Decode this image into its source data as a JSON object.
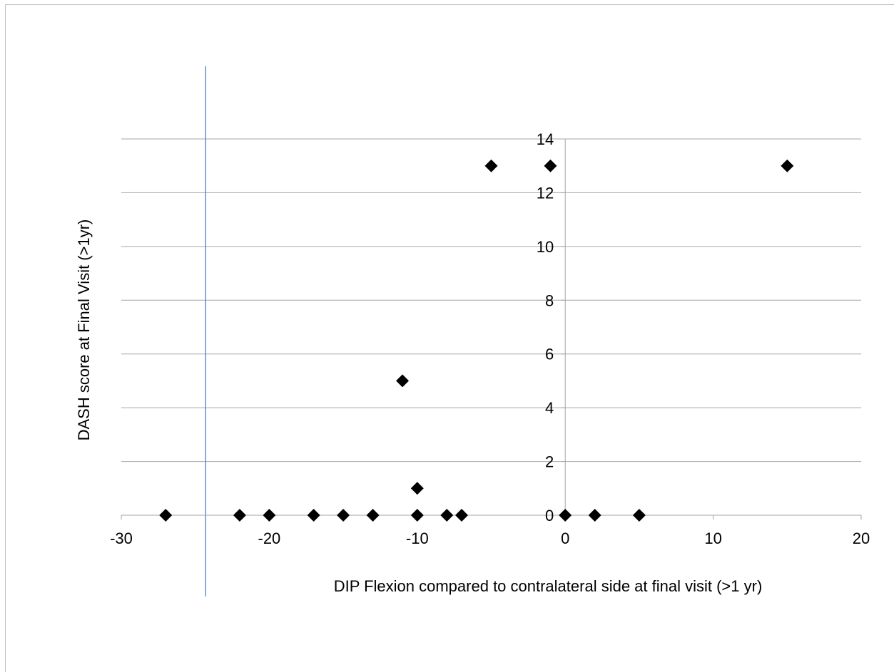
{
  "chart_data": {
    "type": "scatter",
    "xlabel": "DIP Flexion compared to contralateral side at final visit (>1 yr)",
    "ylabel": "DASH score at Final Visit (>1yr)",
    "xlim": [
      -30,
      20
    ],
    "ylim": [
      0,
      14
    ],
    "x_ticks": [
      -30,
      -20,
      -10,
      0,
      10,
      20
    ],
    "y_ticks": [
      0,
      2,
      4,
      6,
      8,
      10,
      12,
      14
    ],
    "grid": "horizontal",
    "legend": "none",
    "vertical_reference_line_x": -24.3,
    "colors": {
      "marker": "#000000",
      "gridline": "#a6a6a6",
      "reference_line": "#4472c4"
    },
    "marker": "diamond",
    "points": [
      {
        "x": -27,
        "y": 0
      },
      {
        "x": -22,
        "y": 0
      },
      {
        "x": -20,
        "y": 0
      },
      {
        "x": -17,
        "y": 0
      },
      {
        "x": -15,
        "y": 0
      },
      {
        "x": -13,
        "y": 0
      },
      {
        "x": -10,
        "y": 0
      },
      {
        "x": -8,
        "y": 0
      },
      {
        "x": -7,
        "y": 0
      },
      {
        "x": 0,
        "y": 0
      },
      {
        "x": 2,
        "y": 0
      },
      {
        "x": 5,
        "y": 0
      },
      {
        "x": -10,
        "y": 1
      },
      {
        "x": -11,
        "y": 5
      },
      {
        "x": -5,
        "y": 13
      },
      {
        "x": -1,
        "y": 13
      },
      {
        "x": 15,
        "y": 13
      }
    ]
  }
}
